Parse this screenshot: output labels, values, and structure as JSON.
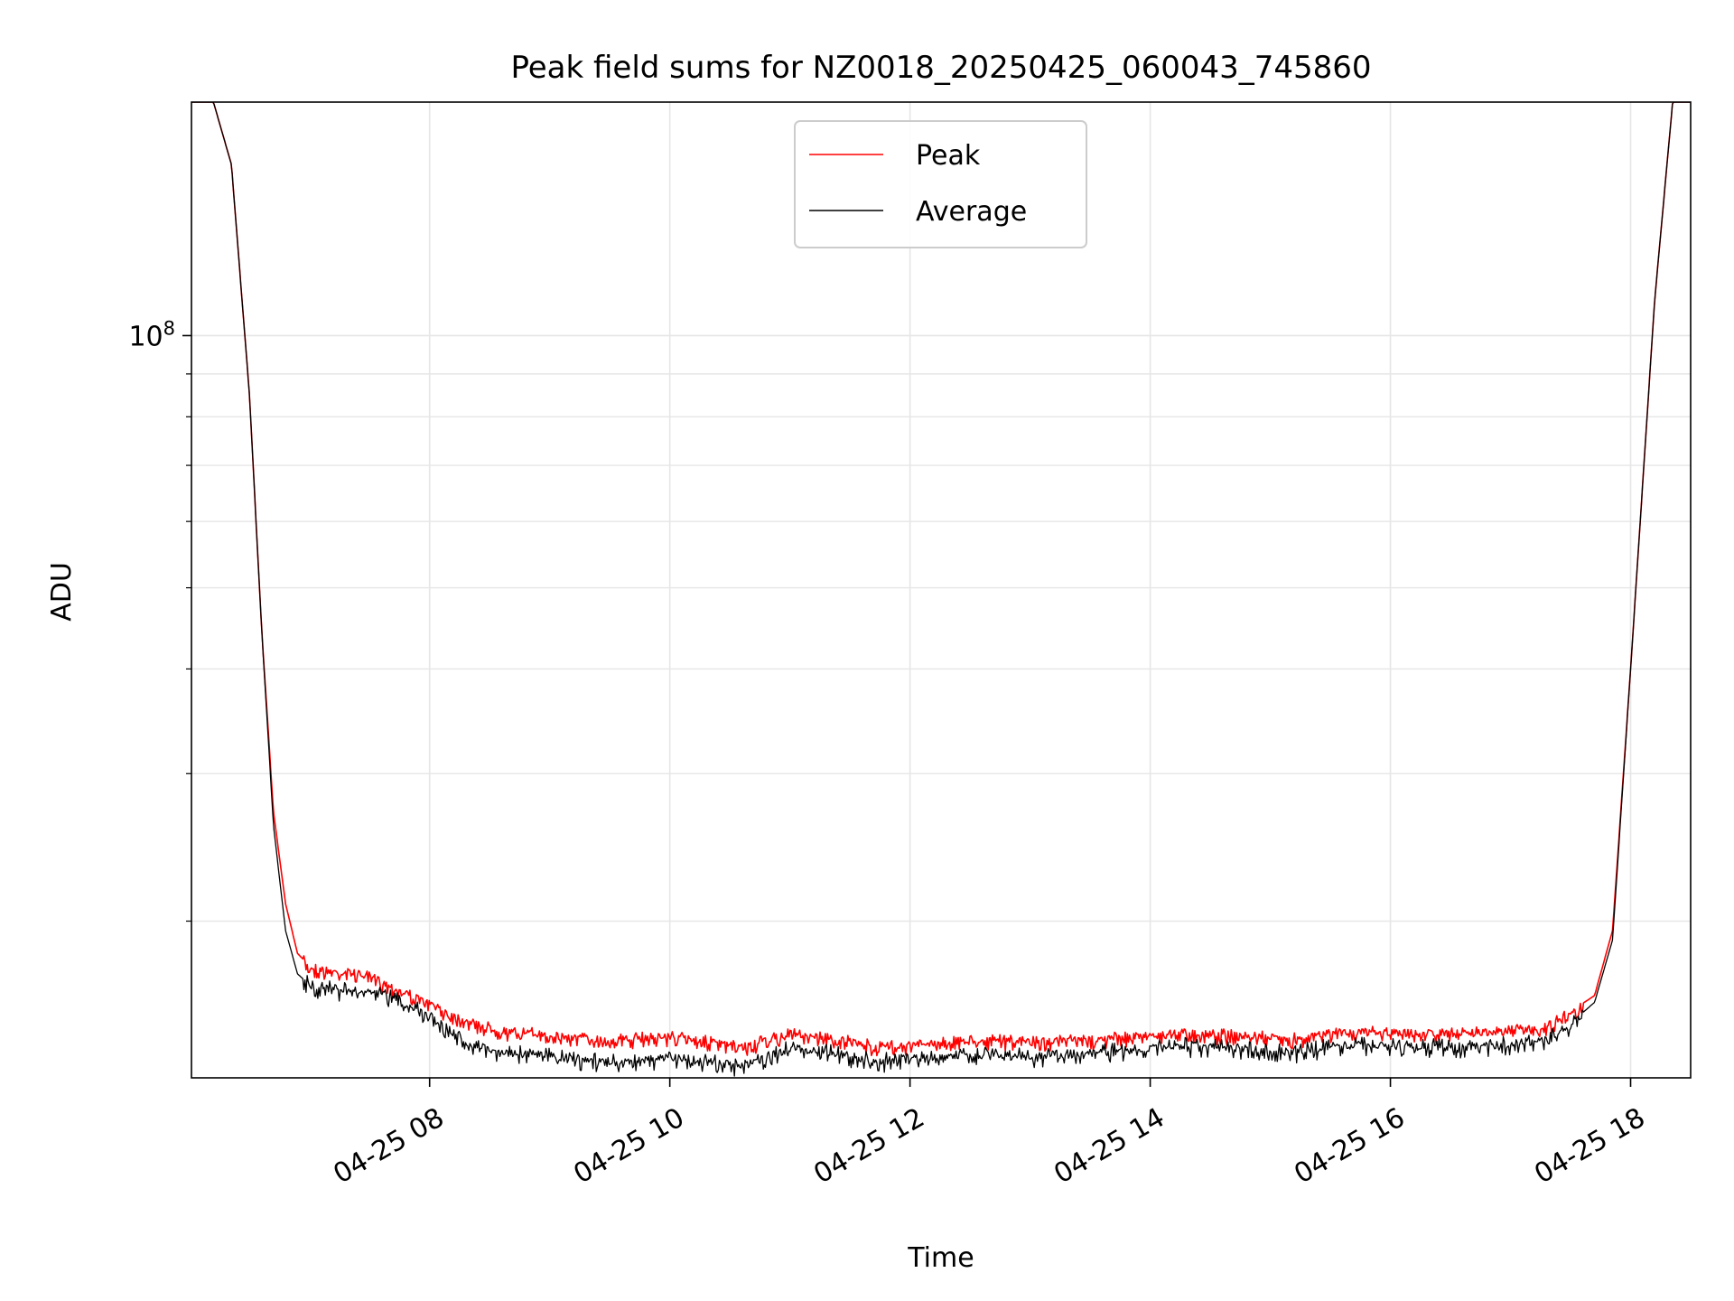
{
  "chart_data": {
    "type": "line",
    "title": "Peak field sums for NZ0018_20250425_060043_745860",
    "xlabel": "Time",
    "ylabel": "ADU",
    "y_scale": "log",
    "grid": true,
    "legend_position": "upper center",
    "x_tick_labels": [
      "04-25 08",
      "04-25 10",
      "04-25 12",
      "04-25 14",
      "04-25 16",
      "04-25 18"
    ],
    "x_tick_hours": [
      8,
      10,
      12,
      14,
      16,
      18
    ],
    "y_tick_labels": [
      {
        "base": "10",
        "exp": "8"
      }
    ],
    "xlim_hours": [
      6.017,
      18.5
    ],
    "ylim": [
      13000000,
      190000000
    ],
    "series": [
      {
        "name": "Peak",
        "color": "#ff0000",
        "hours": [
          6.017,
          6.2,
          6.35,
          6.5,
          6.6,
          6.7,
          6.8,
          6.9,
          7.0,
          7.2,
          7.4,
          7.6,
          7.8,
          8.0,
          8.3,
          8.6,
          9.0,
          9.5,
          10.0,
          10.2,
          10.6,
          11.0,
          11.3,
          11.7,
          12.0,
          12.5,
          13.0,
          13.5,
          14.0,
          14.3,
          14.8,
          15.2,
          15.6,
          16.0,
          16.5,
          17.0,
          17.3,
          17.5,
          17.7,
          17.85,
          18.0,
          18.2,
          18.35,
          18.5
        ],
        "values": [
          190000000,
          190000000,
          160000000,
          85000000,
          45000000,
          27000000,
          21000000,
          18300000,
          17700000,
          17500000,
          17400000,
          17000000,
          16500000,
          16000000,
          15300000,
          14850000,
          14700000,
          14500000,
          14650000,
          14550000,
          14200000,
          14750000,
          14600000,
          14250000,
          14300000,
          14500000,
          14450000,
          14500000,
          14700000,
          14800000,
          14650000,
          14550000,
          14850000,
          14800000,
          14750000,
          14850000,
          15050000,
          15600000,
          16300000,
          19500000,
          40000000,
          110000000,
          190000000,
          190000000
        ]
      },
      {
        "name": "Average",
        "color": "#000000",
        "hours": [
          6.017,
          6.2,
          6.35,
          6.5,
          6.6,
          6.7,
          6.8,
          6.9,
          7.0,
          7.2,
          7.4,
          7.6,
          7.8,
          8.0,
          8.3,
          8.6,
          9.0,
          9.5,
          10.0,
          10.2,
          10.6,
          11.0,
          11.3,
          11.7,
          12.0,
          12.5,
          13.0,
          13.5,
          14.0,
          14.3,
          14.8,
          15.2,
          15.6,
          16.0,
          16.5,
          17.0,
          17.3,
          17.5,
          17.7,
          17.85,
          18.0,
          18.2,
          18.35,
          18.5
        ],
        "values": [
          190000000,
          190000000,
          160000000,
          85000000,
          45000000,
          26000000,
          19500000,
          17300000,
          16800000,
          16650000,
          16550000,
          16400000,
          16000000,
          15500000,
          14400000,
          14000000,
          13850000,
          13600000,
          13800000,
          13700000,
          13450000,
          14150000,
          14050000,
          13650000,
          13750000,
          13900000,
          13850000,
          13950000,
          14150000,
          14250000,
          14100000,
          14000000,
          14300000,
          14250000,
          14200000,
          14300000,
          14500000,
          15100000,
          16000000,
          19000000,
          40000000,
          110000000,
          190000000,
          190000000
        ]
      }
    ]
  }
}
